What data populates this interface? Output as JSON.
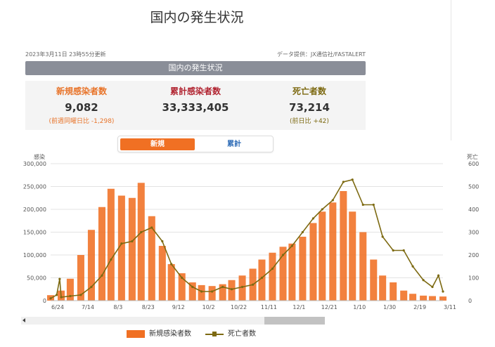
{
  "page_title": "国内の発生状況",
  "updated": "2023年3月11日 23時55分更新",
  "source": "データ提供：JX通信社/FASTALERT",
  "section_title": "国内の発生状況",
  "stats": {
    "new_cases": {
      "label": "新規感染者数",
      "value": "9,082",
      "sub": "(前週同曜日比 -1,298)"
    },
    "total_cases": {
      "label": "累計感染者数",
      "value": "33,333,405"
    },
    "deaths": {
      "label": "死亡者数",
      "value": "73,214",
      "sub": "(前日比 +42)"
    }
  },
  "tabs": [
    {
      "label": "新規",
      "active": true
    },
    {
      "label": "累計",
      "active": false
    }
  ],
  "colors": {
    "bar": "#f07023",
    "line": "#7d6a12",
    "stat_new": "#e8742a",
    "stat_total": "#b12431",
    "stat_death": "#7d6a12",
    "tab_active": "#f07023",
    "tab_inactive": "#2a69b5"
  },
  "chart_data": {
    "type": "bar",
    "left_axis_label": "感染",
    "right_axis_label": "死亡",
    "y_left": {
      "min": 0,
      "max": 300000,
      "ticks": [
        "0",
        "50,000",
        "100,000",
        "150,000",
        "200,000",
        "250,000",
        "300,000"
      ]
    },
    "y_right": {
      "min": 0,
      "max": 600,
      "ticks": [
        "0",
        "100",
        "200",
        "300",
        "400",
        "500",
        "600"
      ]
    },
    "x_tick_labels": [
      "6/24",
      "7/14",
      "8/3",
      "8/23",
      "9/12",
      "10/2",
      "10/22",
      "11/11",
      "12/1",
      "12/21",
      "1/10",
      "1/30",
      "2/19",
      "3/11"
    ],
    "grid": true,
    "legend": "bottom",
    "series": [
      {
        "name": "新規感染者数",
        "type": "bar",
        "axis": "left",
        "points": [
          [
            "6/24",
            12000
          ],
          [
            "7/1",
            22000
          ],
          [
            "7/7",
            48000
          ],
          [
            "7/14",
            100000
          ],
          [
            "7/21",
            155000
          ],
          [
            "7/28",
            205000
          ],
          [
            "8/3",
            245000
          ],
          [
            "8/10",
            230000
          ],
          [
            "8/17",
            225000
          ],
          [
            "8/23",
            258000
          ],
          [
            "8/30",
            185000
          ],
          [
            "9/6",
            120000
          ],
          [
            "9/12",
            80000
          ],
          [
            "9/19",
            60000
          ],
          [
            "9/26",
            40000
          ],
          [
            "10/2",
            34000
          ],
          [
            "10/9",
            32000
          ],
          [
            "10/16",
            36000
          ],
          [
            "10/22",
            45000
          ],
          [
            "10/29",
            55000
          ],
          [
            "11/5",
            70000
          ],
          [
            "11/11",
            90000
          ],
          [
            "11/18",
            105000
          ],
          [
            "11/25",
            118000
          ],
          [
            "12/1",
            125000
          ],
          [
            "12/8",
            140000
          ],
          [
            "12/15",
            170000
          ],
          [
            "12/21",
            195000
          ],
          [
            "12/28",
            215000
          ],
          [
            "1/4",
            240000
          ],
          [
            "1/10",
            195000
          ],
          [
            "1/17",
            150000
          ],
          [
            "1/24",
            90000
          ],
          [
            "1/30",
            55000
          ],
          [
            "2/6",
            40000
          ],
          [
            "2/13",
            22000
          ],
          [
            "2/19",
            15000
          ],
          [
            "2/26",
            11000
          ],
          [
            "3/4",
            10000
          ],
          [
            "3/11",
            9082
          ]
        ]
      },
      {
        "name": "死亡者数",
        "type": "line",
        "axis": "right",
        "points": [
          [
            "6/24",
            10
          ],
          [
            "6/28",
            25
          ],
          [
            "6/30",
            95
          ],
          [
            "7/1",
            15
          ],
          [
            "7/7",
            20
          ],
          [
            "7/14",
            25
          ],
          [
            "7/21",
            60
          ],
          [
            "7/28",
            110
          ],
          [
            "8/3",
            180
          ],
          [
            "8/10",
            250
          ],
          [
            "8/17",
            260
          ],
          [
            "8/23",
            300
          ],
          [
            "8/30",
            320
          ],
          [
            "9/6",
            260
          ],
          [
            "9/12",
            160
          ],
          [
            "9/19",
            100
          ],
          [
            "9/26",
            60
          ],
          [
            "10/2",
            40
          ],
          [
            "10/9",
            40
          ],
          [
            "10/16",
            60
          ],
          [
            "10/22",
            50
          ],
          [
            "10/29",
            60
          ],
          [
            "11/5",
            70
          ],
          [
            "11/11",
            100
          ],
          [
            "11/18",
            140
          ],
          [
            "11/25",
            200
          ],
          [
            "12/1",
            240
          ],
          [
            "12/8",
            300
          ],
          [
            "12/15",
            360
          ],
          [
            "12/21",
            400
          ],
          [
            "12/28",
            440
          ],
          [
            "1/4",
            520
          ],
          [
            "1/10",
            530
          ],
          [
            "1/17",
            420
          ],
          [
            "1/24",
            420
          ],
          [
            "1/30",
            280
          ],
          [
            "2/6",
            220
          ],
          [
            "2/13",
            220
          ],
          [
            "2/19",
            150
          ],
          [
            "2/26",
            90
          ],
          [
            "3/4",
            60
          ],
          [
            "3/8",
            110
          ],
          [
            "3/11",
            40
          ]
        ]
      }
    ]
  }
}
